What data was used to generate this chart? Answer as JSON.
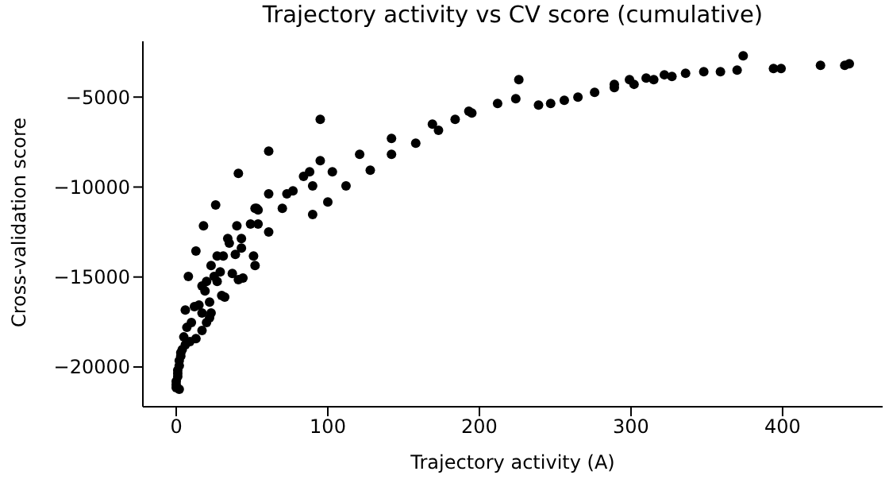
{
  "chart_data": {
    "type": "scatter",
    "title": "Trajectory activity vs CV score (cumulative)",
    "xlabel": "Trajectory activity (A)",
    "ylabel": "Cross-validation score",
    "x": [
      95,
      61,
      41,
      95,
      88,
      84,
      103,
      121,
      128,
      112,
      90,
      100,
      90,
      77,
      73,
      61,
      70,
      53,
      142,
      142,
      158,
      169,
      173,
      184,
      193,
      195,
      212,
      224,
      226,
      239,
      247,
      256,
      265,
      276,
      289,
      289,
      299,
      302,
      310,
      315,
      322,
      327,
      336,
      348,
      359,
      370,
      374,
      394,
      399,
      425,
      441,
      444,
      26,
      18,
      13,
      8,
      6,
      40,
      49,
      54,
      52,
      54,
      61,
      34,
      35,
      43,
      43,
      39,
      27,
      31,
      51,
      52,
      23,
      29,
      37,
      41,
      44,
      25,
      20,
      17,
      27,
      30,
      32,
      19,
      15,
      12,
      22,
      23,
      22,
      17,
      17,
      20,
      10,
      7,
      13,
      9,
      6,
      4,
      3,
      2,
      2,
      1,
      1,
      0,
      0,
      2,
      5,
      3,
      1,
      0
    ],
    "series": [
      {
        "color": "#000000",
        "values": [
          -6240,
          -8000,
          -9240,
          -8530,
          -9150,
          -9410,
          -9150,
          -8180,
          -9060,
          -9940,
          -9940,
          -10830,
          -11530,
          -10210,
          -10380,
          -10380,
          -11180,
          -11180,
          -7300,
          -8180,
          -7560,
          -6500,
          -6850,
          -6240,
          -5790,
          -5880,
          -5350,
          -5090,
          -4030,
          -5440,
          -5350,
          -5180,
          -5000,
          -4740,
          -4290,
          -4470,
          -4030,
          -4290,
          -3940,
          -4030,
          -3760,
          -3850,
          -3680,
          -3590,
          -3590,
          -3500,
          -2710,
          -3410,
          -3410,
          -3240,
          -3240,
          -3150,
          -11000,
          -12150,
          -13560,
          -14970,
          -16830,
          -12150,
          -12060,
          -12060,
          -11180,
          -11270,
          -12500,
          -12860,
          -13120,
          -12860,
          -13390,
          -13740,
          -13830,
          -13830,
          -13830,
          -14360,
          -14360,
          -14710,
          -14800,
          -15150,
          -15060,
          -14970,
          -15240,
          -15500,
          -15240,
          -16030,
          -16120,
          -15770,
          -16560,
          -16650,
          -16390,
          -17000,
          -17270,
          -17000,
          -17970,
          -17530,
          -17530,
          -17800,
          -18420,
          -18590,
          -18770,
          -19030,
          -19390,
          -19650,
          -19920,
          -20180,
          -20530,
          -20800,
          -21150,
          -21240,
          -18330,
          -19210,
          -20360,
          -20980
        ]
      }
    ],
    "xlim": [
      -22,
      466
    ],
    "xticks": [
      0,
      100,
      200,
      300,
      400
    ],
    "ylim": [
      -22210,
      -1900
    ],
    "yticks": [
      {
        "value": -20000,
        "label": "−20000"
      },
      {
        "value": -15000,
        "label": "−15000"
      },
      {
        "value": -10000,
        "label": "−10000"
      },
      {
        "value": -5000,
        "label": "−5000"
      }
    ],
    "marker": "circle",
    "grid": false,
    "legend": false
  }
}
